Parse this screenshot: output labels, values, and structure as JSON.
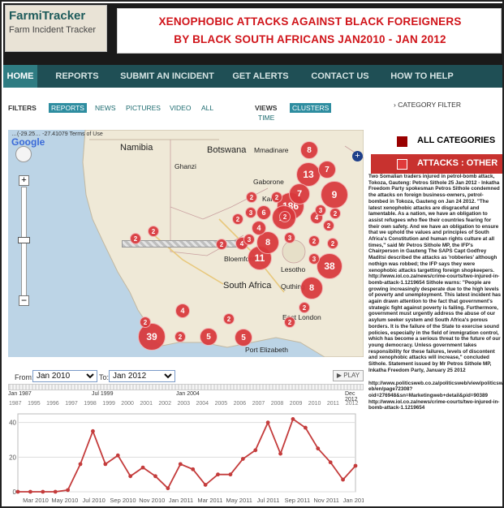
{
  "logo": {
    "title": "FarmiTracker",
    "subtitle": "Farm Incident Tracker"
  },
  "banner": {
    "line1": "XENOPHOBIC ATTACKS AGAINST BLACK FOREIGNERS",
    "line2": "BY BLACK SOUTH AFRICANS JAN2010 - JAN 2012"
  },
  "nav": {
    "items": [
      "HOME",
      "REPORTS",
      "SUBMIT AN INCIDENT",
      "GET ALERTS",
      "CONTACT US",
      "HOW TO HELP"
    ],
    "active": "HOME"
  },
  "filters": {
    "label": "FILTERS",
    "items": [
      "REPORTS",
      "NEWS",
      "PICTURES",
      "VIDEO",
      "ALL"
    ],
    "views_label": "VIEWS",
    "views": [
      "CLUSTERS",
      "TIME"
    ]
  },
  "category_filter": {
    "title": "CATEGORY FILTER",
    "items": [
      {
        "label": "ALL CATEGORIES",
        "color": "#990000"
      },
      {
        "label": "ATTACKS : OTHER",
        "color": "#e03b3b"
      }
    ]
  },
  "map": {
    "coords": "…(-29.25… -27.41079",
    "terms": "Terms of Use",
    "provider": "Google",
    "labels": [
      {
        "text": "Namibia",
        "big": true
      },
      {
        "text": "Botswana",
        "big": true
      },
      {
        "text": "Ghanzi",
        "big": false
      },
      {
        "text": "Mmadinare",
        "big": false
      },
      {
        "text": "Gaborone",
        "big": false
      },
      {
        "text": "Kanye",
        "big": false
      },
      {
        "text": "Bloemfontein",
        "big": false
      },
      {
        "text": "Lesotho",
        "big": false
      },
      {
        "text": "Quthing",
        "big": false
      },
      {
        "text": "South Africa",
        "big": true
      },
      {
        "text": "East London",
        "big": false
      },
      {
        "text": "Port Elizabeth",
        "big": false
      }
    ],
    "clusters": [
      "186",
      "39",
      "38",
      "13",
      "11",
      "11",
      "9",
      "8",
      "8",
      "8",
      "7",
      "7",
      "6",
      "5",
      "5",
      "4",
      "4",
      "4",
      "4",
      "3",
      "3",
      "3",
      "3",
      "3",
      "2",
      "2",
      "2",
      "2",
      "2",
      "2",
      "2",
      "2",
      "2",
      "2",
      "2",
      "2",
      "2",
      "2",
      "2",
      "2"
    ]
  },
  "timeline": {
    "from_label": "From:",
    "from_value": "Jan 2010",
    "to_label": "To:",
    "to_value": "Jan 2012",
    "play_label": "PLAY",
    "slider_start": "Jan 1987",
    "slider_mid": "Jul 1999",
    "slider_mid2": "Jan 2004",
    "slider_end": "Dec 2012",
    "slider_years": [
      "1987",
      "1995",
      "1996",
      "1997",
      "1998",
      "1999",
      "2000",
      "2001",
      "2002",
      "2003",
      "2004",
      "2005",
      "2006",
      "2007",
      "2008",
      "2009",
      "2010",
      "2011",
      "2012"
    ]
  },
  "chart_data": {
    "type": "line",
    "title": "",
    "xlabel": "",
    "ylabel": "",
    "ylim": [
      0,
      45
    ],
    "yticks": [
      0,
      20,
      40
    ],
    "xticks": [
      "Mar 2010",
      "May 2010",
      "Jul 2010",
      "Sep 2010",
      "Nov 2010",
      "Jan 2011",
      "Mar 2011",
      "May 2011",
      "Jul 2011",
      "Sep 2011",
      "Nov 2011",
      "Jan 2012"
    ],
    "series": [
      {
        "color": "#c43c3c",
        "values": [
          0,
          0,
          0,
          0,
          1,
          16,
          35,
          16,
          21,
          9,
          14,
          9,
          2,
          16,
          13,
          4,
          10,
          10,
          19,
          24,
          40,
          22,
          42,
          37,
          25,
          17,
          7,
          15
        ]
      }
    ]
  },
  "article": {
    "paragraphs": [
      "Two Somalian traders injured in petrol-bomb attack, Tokoza, Gauteng: Petros Sithole 25 Jan 2012 - Inkatha Freedom Party spokesman Petros Sithole condemned the attacks on foreign business-owners, petrol-bombed in Tokoza, Gauteng on Jan 24 2012. \"The latest xenophobic attacks are disgraceful and lamentable. As a nation, we have an obligation to assist refugees who flee their countries fearing for their own safety. And we have an obligation to ensure that we uphold the values and principles of South Africa's Constitution and human rights culture at all times,\" said Mr Petros Sithole MP, the IFP's Chairperson in Gauteng The SAPS Capt Godfrey Maditsi described the attacks as 'robberies' although nothign was robbed; the IFP says they were xenophobic attacks targetting foreign shopkeepers. http://www.iol.co.za/news/crime-courts/two-injured-in-bomb-attack-1.1219654 Sithole warns: \"People are growing increasingly desperate due to the high levels of poverty and unemployment. This latest incident has again drawn attention to the fact that government's strategic fight against poverty is failing. Furthermore, government must urgently address the abuse of our asylum seeker system and South Africa's porous borders. It is the failure of the State to exercise sound policies, especially in the field of immigration control, which has become a serious threat to the future of our young democracy. Unless government takes responsibility for these failures, levels of discontent and xenophobic attacks will increase,\" concluded Sithole. Statement issued by Mr Petros Sithole MP, Inkatha Freedom Party, January 25 2012",
      "http://www.politicsweb.co.za/politicsweb/view/politicsweb/en/page72308?oid=276948&sn=Marketingweb+detail&pid=90389 http://www.iol.co.za/news/crime-courts/two-injured-in-bomb-attack-1.1219654"
    ]
  }
}
